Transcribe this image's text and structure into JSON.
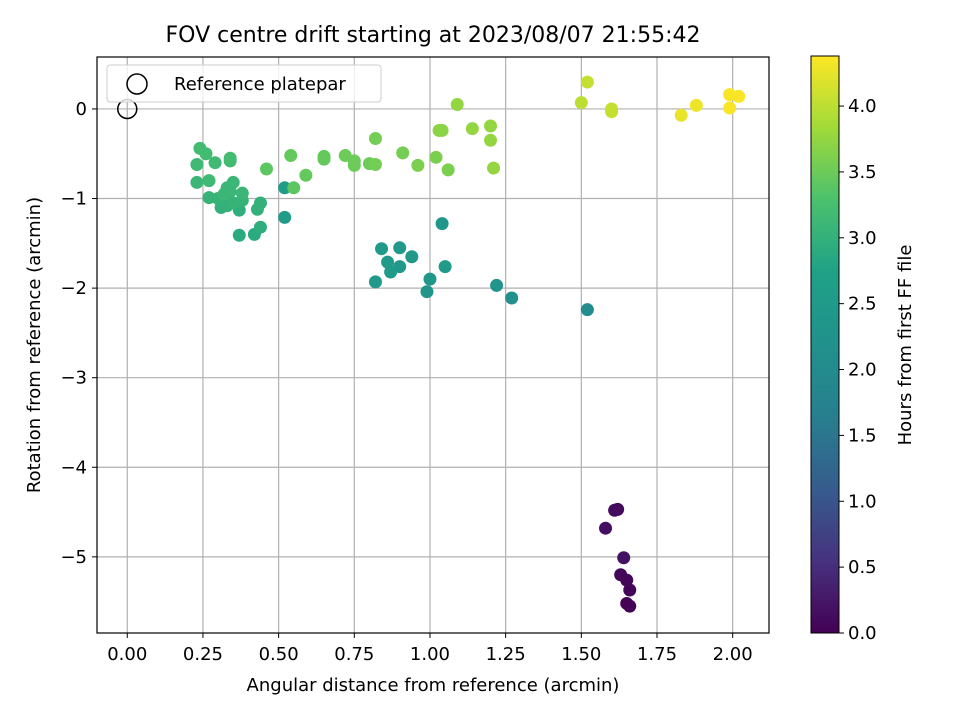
{
  "chart_data": {
    "type": "scatter",
    "title": "FOV centre drift starting at 2023/08/07 21:55:42",
    "xlabel": "Angular distance from reference (arcmin)",
    "ylabel": "Rotation from reference (arcmin)",
    "xlim": [
      -0.1,
      2.12
    ],
    "ylim": [
      -5.85,
      0.58
    ],
    "xticks": [
      0.0,
      0.25,
      0.5,
      0.75,
      1.0,
      1.25,
      1.5,
      1.75,
      2.0
    ],
    "xtick_labels": [
      "0.00",
      "0.25",
      "0.50",
      "0.75",
      "1.00",
      "1.25",
      "1.50",
      "1.75",
      "2.00"
    ],
    "yticks": [
      0,
      -1,
      -2,
      -3,
      -4,
      -5
    ],
    "ytick_labels": [
      "0",
      "−1",
      "−2",
      "−3",
      "−4",
      "−5"
    ],
    "grid": true,
    "legend": {
      "placement": "upper-left",
      "entries": [
        {
          "label": "Reference platepar",
          "marker": "open-circle",
          "color": "#000000"
        }
      ]
    },
    "reference_point": {
      "x": 0.0,
      "y": 0.0
    },
    "colorbar": {
      "label": "Hours from first FF file",
      "colormap": "viridis",
      "min": 0.0,
      "max": 4.38,
      "ticks": [
        0.0,
        0.5,
        1.0,
        1.5,
        2.0,
        2.5,
        3.0,
        3.5,
        4.0
      ],
      "tick_labels": [
        "0.0",
        "0.5",
        "1.0",
        "1.5",
        "2.0",
        "2.5",
        "3.0",
        "3.5",
        "4.0"
      ]
    },
    "series": [
      {
        "points": [
          {
            "x": 1.62,
            "y": -4.47,
            "c": 0.1
          },
          {
            "x": 1.61,
            "y": -4.48,
            "c": 0.12
          },
          {
            "x": 1.58,
            "y": -4.68,
            "c": 0.15
          },
          {
            "x": 1.64,
            "y": -5.01,
            "c": 0.2
          },
          {
            "x": 1.63,
            "y": -5.2,
            "c": 0.08
          },
          {
            "x": 1.65,
            "y": -5.26,
            "c": 0.06
          },
          {
            "x": 1.66,
            "y": -5.37,
            "c": 0.05
          },
          {
            "x": 1.65,
            "y": -5.52,
            "c": 0.03
          },
          {
            "x": 1.66,
            "y": -5.55,
            "c": 0.02
          },
          {
            "x": 1.52,
            "y": -2.24,
            "c": 2.05
          },
          {
            "x": 1.27,
            "y": -2.11,
            "c": 2.15
          },
          {
            "x": 1.22,
            "y": -1.97,
            "c": 2.3
          },
          {
            "x": 0.99,
            "y": -2.04,
            "c": 2.35
          },
          {
            "x": 1.0,
            "y": -1.9,
            "c": 2.4
          },
          {
            "x": 1.05,
            "y": -1.76,
            "c": 2.5
          },
          {
            "x": 0.82,
            "y": -1.93,
            "c": 2.45
          },
          {
            "x": 0.87,
            "y": -1.82,
            "c": 2.5
          },
          {
            "x": 0.9,
            "y": -1.76,
            "c": 2.45
          },
          {
            "x": 0.86,
            "y": -1.71,
            "c": 2.5
          },
          {
            "x": 0.94,
            "y": -1.65,
            "c": 2.45
          },
          {
            "x": 0.84,
            "y": -1.56,
            "c": 2.5
          },
          {
            "x": 0.9,
            "y": -1.55,
            "c": 2.45
          },
          {
            "x": 1.04,
            "y": -1.28,
            "c": 2.4
          },
          {
            "x": 0.52,
            "y": -1.21,
            "c": 2.55
          },
          {
            "x": 0.52,
            "y": -0.88,
            "c": 2.6
          },
          {
            "x": 0.37,
            "y": -1.41,
            "c": 2.9
          },
          {
            "x": 0.42,
            "y": -1.4,
            "c": 2.9
          },
          {
            "x": 0.44,
            "y": -1.32,
            "c": 2.95
          },
          {
            "x": 0.37,
            "y": -1.13,
            "c": 2.95
          },
          {
            "x": 0.43,
            "y": -1.12,
            "c": 3.0
          },
          {
            "x": 0.44,
            "y": -1.05,
            "c": 3.0
          },
          {
            "x": 0.31,
            "y": -1.1,
            "c": 3.0
          },
          {
            "x": 0.33,
            "y": -1.08,
            "c": 3.0
          },
          {
            "x": 0.35,
            "y": -1.05,
            "c": 3.05
          },
          {
            "x": 0.38,
            "y": -1.02,
            "c": 3.05
          },
          {
            "x": 0.3,
            "y": -1.0,
            "c": 3.05
          },
          {
            "x": 0.27,
            "y": -0.99,
            "c": 3.05
          },
          {
            "x": 0.32,
            "y": -0.95,
            "c": 3.1
          },
          {
            "x": 0.34,
            "y": -0.92,
            "c": 3.1
          },
          {
            "x": 0.38,
            "y": -0.94,
            "c": 3.1
          },
          {
            "x": 0.33,
            "y": -0.88,
            "c": 3.1
          },
          {
            "x": 0.35,
            "y": -0.82,
            "c": 3.1
          },
          {
            "x": 0.23,
            "y": -0.82,
            "c": 3.1
          },
          {
            "x": 0.27,
            "y": -0.8,
            "c": 3.15
          },
          {
            "x": 0.29,
            "y": -0.6,
            "c": 3.15
          },
          {
            "x": 0.23,
            "y": -0.62,
            "c": 3.15
          },
          {
            "x": 0.34,
            "y": -0.58,
            "c": 3.15
          },
          {
            "x": 0.24,
            "y": -0.44,
            "c": 3.2
          },
          {
            "x": 0.34,
            "y": -0.55,
            "c": 3.2
          },
          {
            "x": 0.26,
            "y": -0.5,
            "c": 3.2
          },
          {
            "x": 0.46,
            "y": -0.67,
            "c": 3.4
          },
          {
            "x": 0.54,
            "y": -0.52,
            "c": 3.45
          },
          {
            "x": 0.55,
            "y": -0.88,
            "c": 3.4
          },
          {
            "x": 0.59,
            "y": -0.74,
            "c": 3.45
          },
          {
            "x": 0.65,
            "y": -0.56,
            "c": 3.45
          },
          {
            "x": 0.65,
            "y": -0.53,
            "c": 3.45
          },
          {
            "x": 0.72,
            "y": -0.52,
            "c": 3.5
          },
          {
            "x": 0.75,
            "y": -0.63,
            "c": 3.5
          },
          {
            "x": 0.75,
            "y": -0.58,
            "c": 3.5
          },
          {
            "x": 0.8,
            "y": -0.61,
            "c": 3.5
          },
          {
            "x": 0.82,
            "y": -0.62,
            "c": 3.55
          },
          {
            "x": 0.82,
            "y": -0.33,
            "c": 3.55
          },
          {
            "x": 0.91,
            "y": -0.49,
            "c": 3.55
          },
          {
            "x": 0.96,
            "y": -0.63,
            "c": 3.6
          },
          {
            "x": 1.02,
            "y": -0.54,
            "c": 3.6
          },
          {
            "x": 1.06,
            "y": -0.68,
            "c": 3.6
          },
          {
            "x": 1.03,
            "y": -0.24,
            "c": 3.7
          },
          {
            "x": 1.04,
            "y": -0.24,
            "c": 3.7
          },
          {
            "x": 1.09,
            "y": 0.05,
            "c": 3.75
          },
          {
            "x": 1.14,
            "y": -0.22,
            "c": 3.75
          },
          {
            "x": 1.2,
            "y": -0.19,
            "c": 3.75
          },
          {
            "x": 1.2,
            "y": -0.35,
            "c": 3.75
          },
          {
            "x": 1.21,
            "y": -0.66,
            "c": 3.75
          },
          {
            "x": 1.5,
            "y": 0.07,
            "c": 4.0
          },
          {
            "x": 1.52,
            "y": 0.3,
            "c": 4.05
          },
          {
            "x": 1.6,
            "y": 0.0,
            "c": 4.05
          },
          {
            "x": 1.6,
            "y": -0.03,
            "c": 4.05
          },
          {
            "x": 1.83,
            "y": -0.07,
            "c": 4.25
          },
          {
            "x": 1.88,
            "y": 0.04,
            "c": 4.3
          },
          {
            "x": 1.99,
            "y": 0.16,
            "c": 4.35
          },
          {
            "x": 2.02,
            "y": 0.14,
            "c": 4.35
          },
          {
            "x": 1.99,
            "y": 0.01,
            "c": 4.35
          }
        ]
      }
    ]
  }
}
